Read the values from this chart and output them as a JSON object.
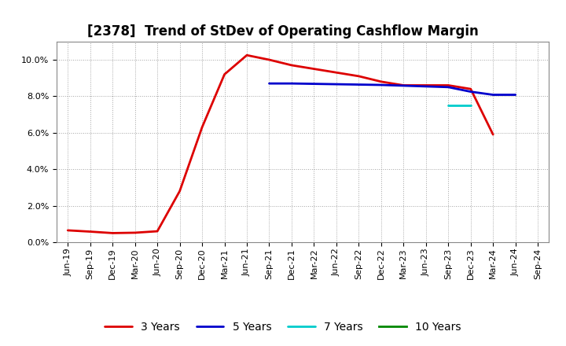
{
  "title": "[2378]  Trend of StDev of Operating Cashflow Margin",
  "title_fontsize": 12,
  "background_color": "#ffffff",
  "plot_bg_color": "#ffffff",
  "grid_color": "#999999",
  "ylim": [
    0.0,
    0.11
  ],
  "yticks": [
    0.0,
    0.02,
    0.04,
    0.06,
    0.08,
    0.1
  ],
  "x_labels": [
    "Jun-19",
    "Sep-19",
    "Dec-19",
    "Mar-20",
    "Jun-20",
    "Sep-20",
    "Dec-20",
    "Mar-21",
    "Jun-21",
    "Sep-21",
    "Dec-21",
    "Mar-22",
    "Jun-22",
    "Sep-22",
    "Dec-22",
    "Mar-23",
    "Jun-23",
    "Sep-23",
    "Dec-23",
    "Mar-24",
    "Jun-24",
    "Sep-24"
  ],
  "series_order": [
    "3 Years",
    "5 Years",
    "7 Years",
    "10 Years"
  ],
  "series": {
    "3 Years": {
      "color": "#dd0000",
      "linewidth": 2.0,
      "data_x": [
        "Jun-19",
        "Sep-19",
        "Dec-19",
        "Mar-20",
        "Jun-20",
        "Sep-20",
        "Dec-20",
        "Mar-21",
        "Jun-21",
        "Sep-21",
        "Dec-21",
        "Mar-22",
        "Jun-22",
        "Sep-22",
        "Dec-22",
        "Mar-23",
        "Jun-23",
        "Sep-23",
        "Dec-23",
        "Mar-24"
      ],
      "data_y": [
        0.0065,
        0.0058,
        0.005,
        0.0052,
        0.006,
        0.028,
        0.063,
        0.092,
        0.1025,
        0.1,
        0.097,
        0.095,
        0.093,
        0.091,
        0.088,
        0.086,
        0.086,
        0.086,
        0.084,
        0.059
      ]
    },
    "5 Years": {
      "color": "#0000cc",
      "linewidth": 2.0,
      "data_x": [
        "Sep-21",
        "Dec-21",
        "Mar-22",
        "Jun-22",
        "Sep-22",
        "Dec-22",
        "Mar-23",
        "Jun-23",
        "Sep-23",
        "Dec-23",
        "Mar-24",
        "Jun-24"
      ],
      "data_y": [
        0.087,
        0.087,
        0.0868,
        0.0866,
        0.0864,
        0.0862,
        0.0858,
        0.0854,
        0.085,
        0.0825,
        0.0808,
        0.0808
      ]
    },
    "7 Years": {
      "color": "#00cccc",
      "linewidth": 2.0,
      "data_x": [
        "Sep-23",
        "Dec-23"
      ],
      "data_y": [
        0.0748,
        0.0748
      ]
    },
    "10 Years": {
      "color": "#008800",
      "linewidth": 2.0,
      "data_x": [],
      "data_y": []
    }
  },
  "legend_fontsize": 10,
  "tick_fontsize": 8
}
